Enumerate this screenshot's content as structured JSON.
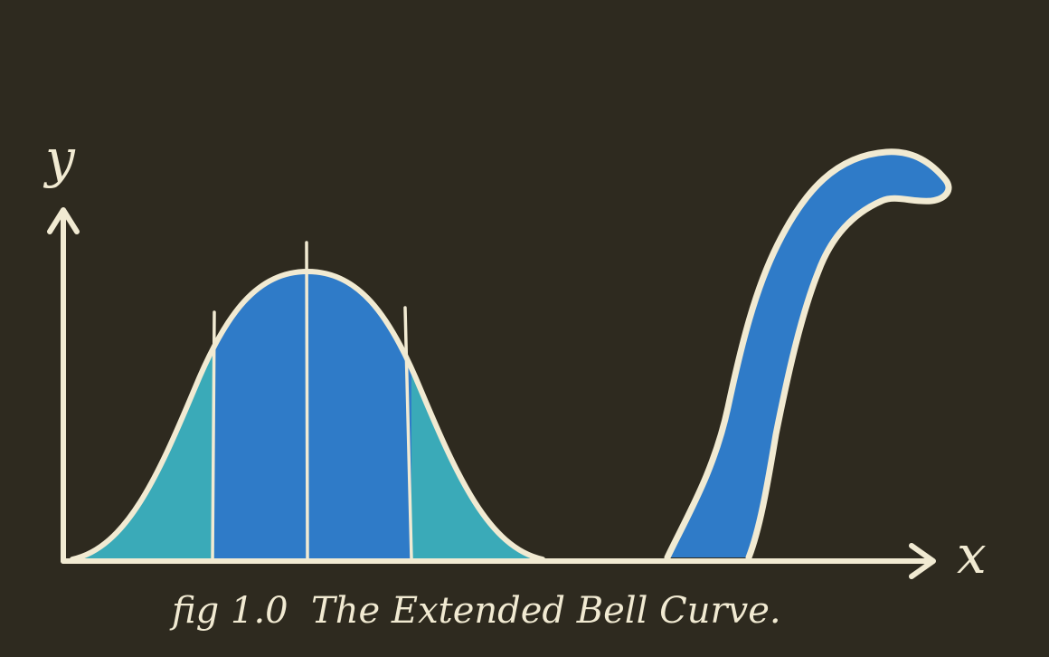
{
  "colors": {
    "background": "#2e2a1f",
    "ink": "#f1ead2",
    "center_fill": "#2f7bc8",
    "tail_fill": "#3aaab8",
    "neck_fill": "#2f7bc8"
  },
  "axes": {
    "y_label": "y",
    "x_label": "x"
  },
  "caption": "fig 1.0  The Extended Bell Curve."
}
